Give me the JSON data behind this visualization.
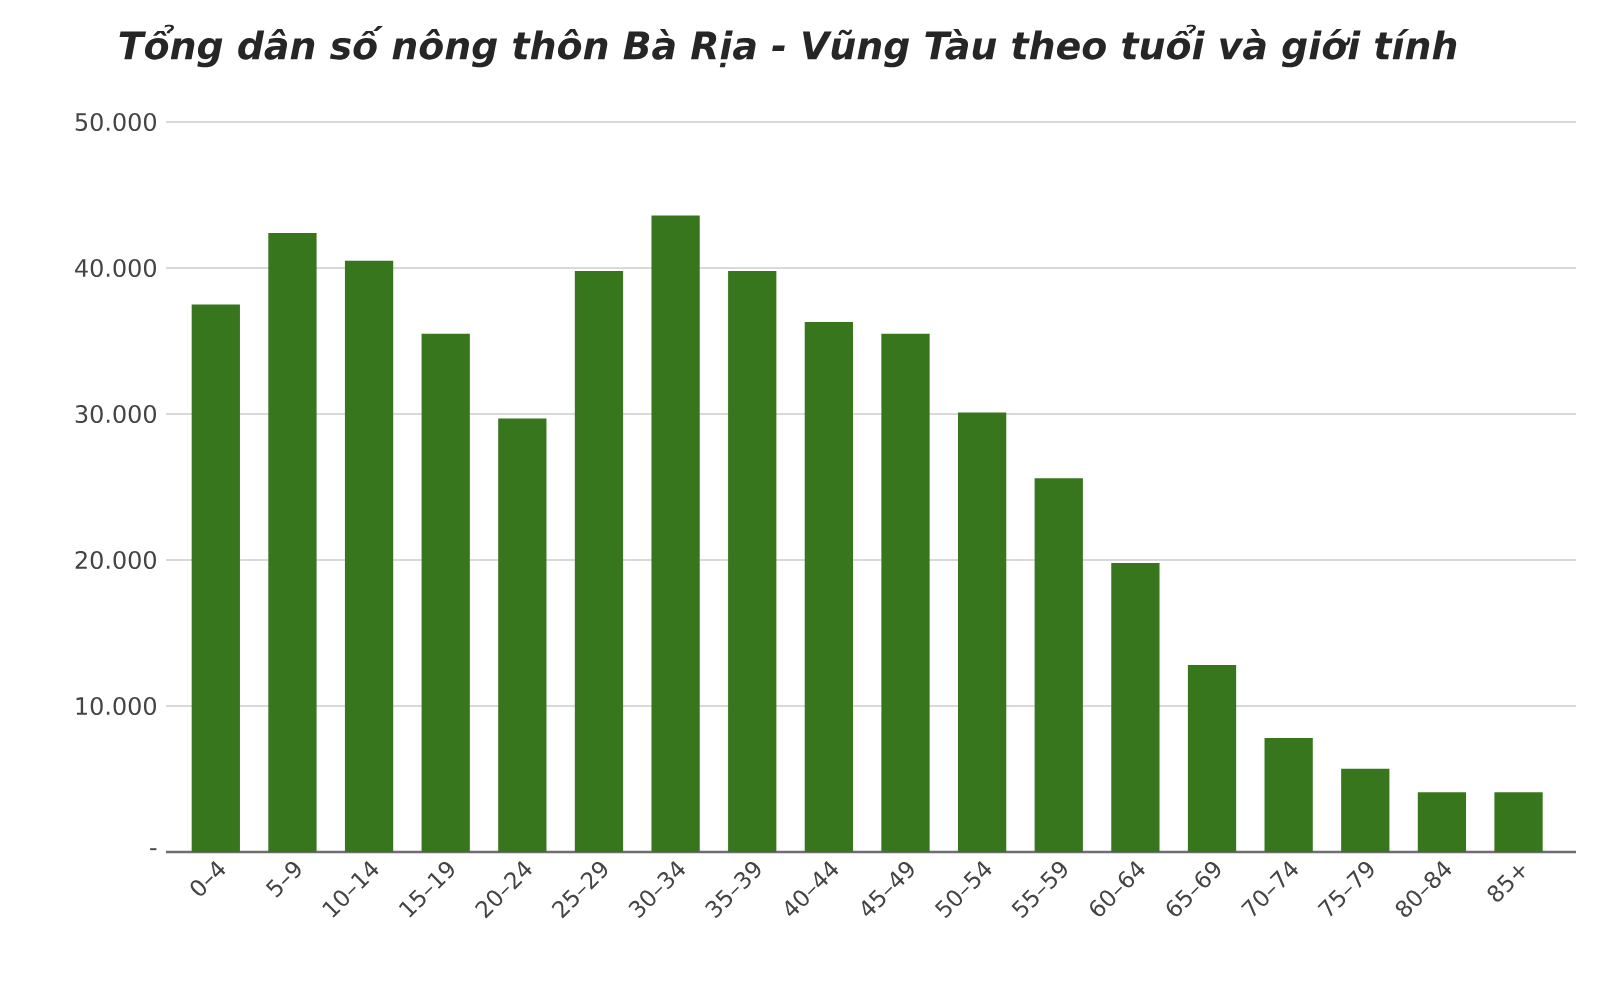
{
  "chart_data": {
    "type": "bar",
    "title": "Tổng dân số nông thôn Bà Rịa - Vũng Tàu theo tuổi và giới tính",
    "categories": [
      "0–4",
      "5–9",
      "10–14",
      "15–19",
      "20–24",
      "25–29",
      "30–34",
      "35–39",
      "40–44",
      "45–49",
      "50–54",
      "55–59",
      "60–64",
      "65–69",
      "70–74",
      "75–79",
      "80–84",
      "85+"
    ],
    "values": [
      37500,
      42400,
      40500,
      35500,
      29700,
      39800,
      43600,
      39800,
      36300,
      35500,
      30100,
      25600,
      19800,
      12800,
      7800,
      5700,
      4100,
      4100
    ],
    "color": "#38761d",
    "ylim": [
      0,
      50000
    ],
    "yticks": [
      {
        "value": 0,
        "label": "-"
      },
      {
        "value": 10000,
        "label": "10.000"
      },
      {
        "value": 20000,
        "label": "20.000"
      },
      {
        "value": 30000,
        "label": "30.000"
      },
      {
        "value": 40000,
        "label": "40.000"
      },
      {
        "value": 50000,
        "label": "50.000"
      }
    ],
    "grid": "y"
  }
}
